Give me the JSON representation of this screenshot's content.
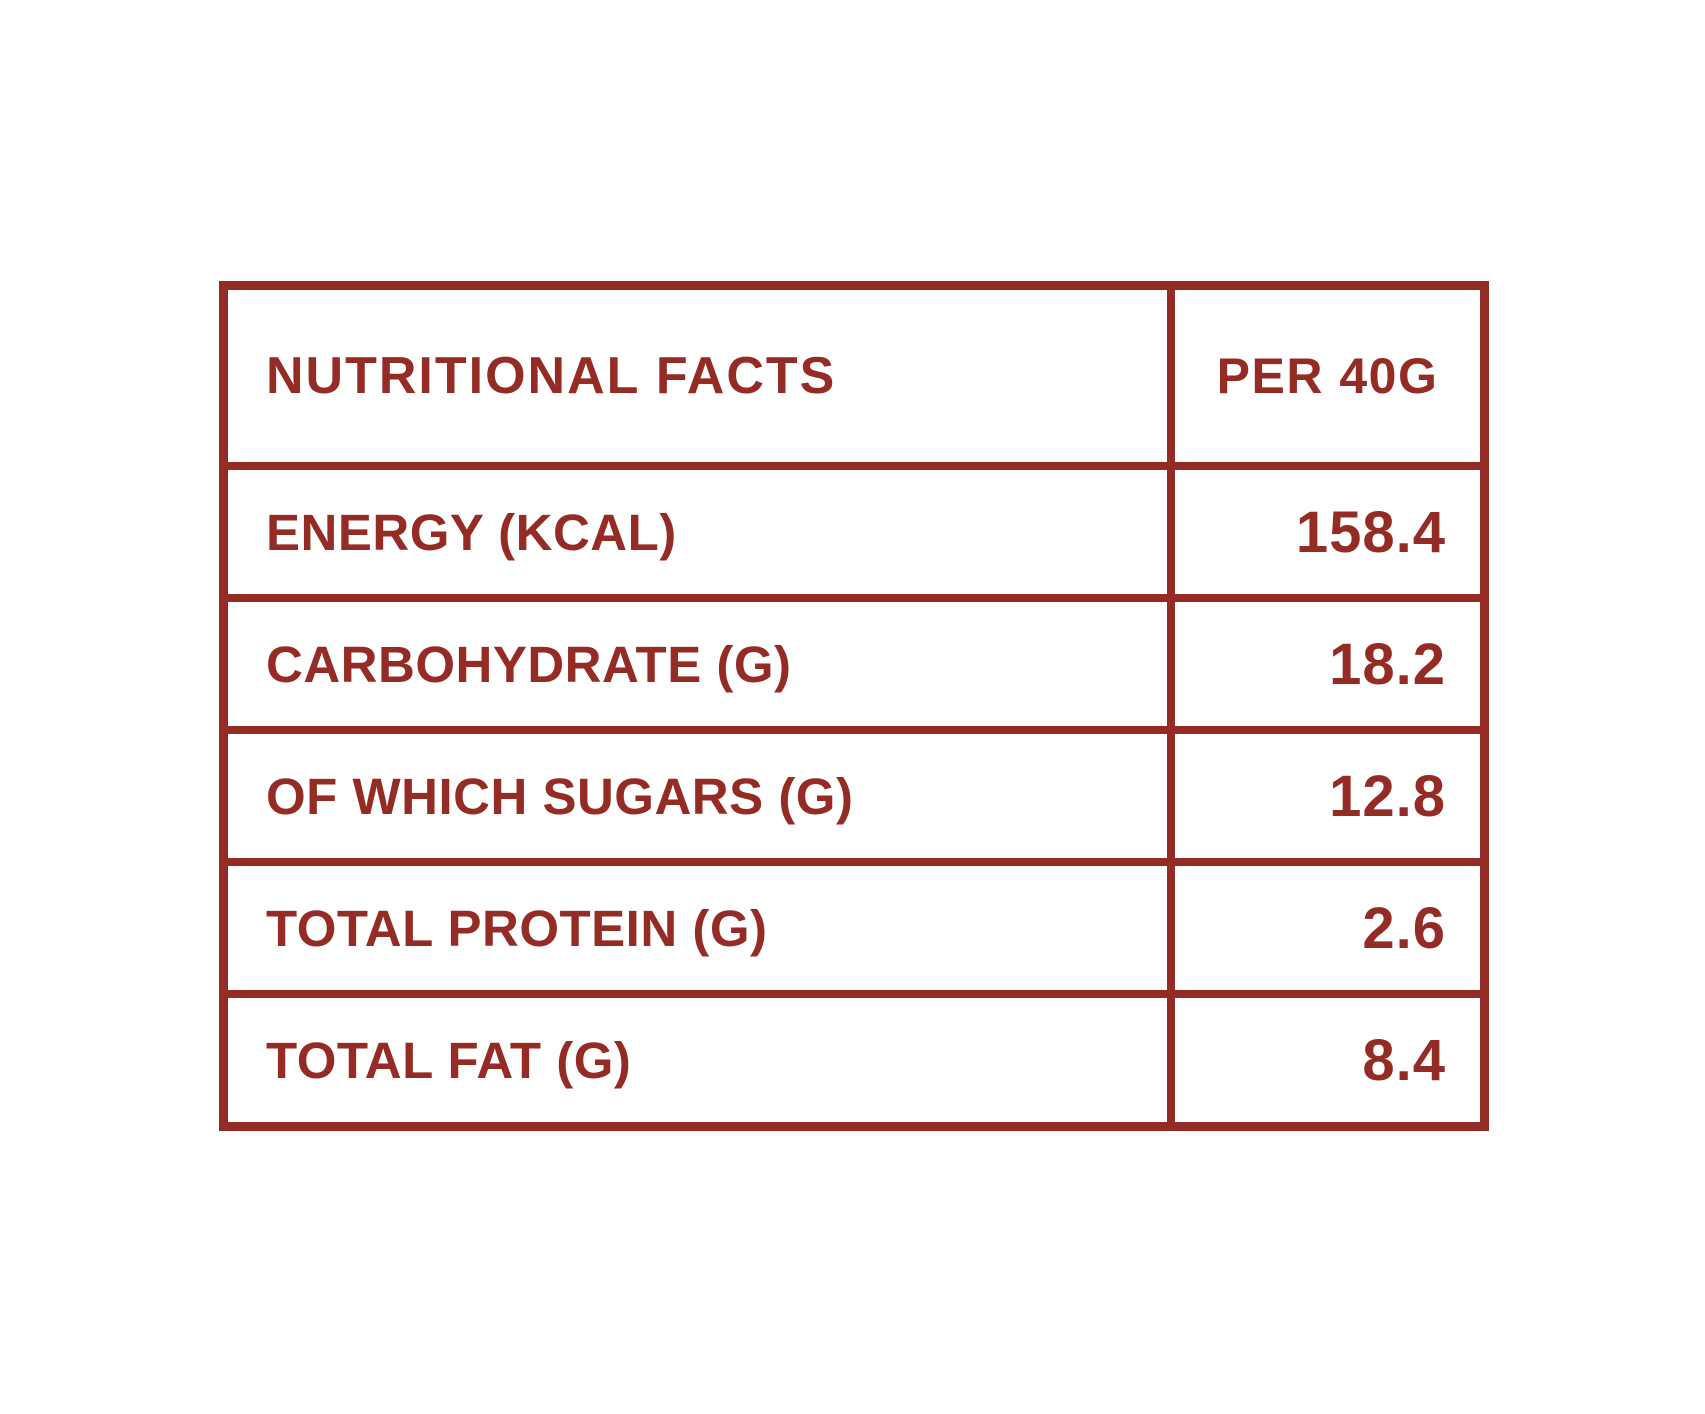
{
  "colors": {
    "brand_red": "#942B24",
    "background": "#FFFFFF"
  },
  "table": {
    "header": {
      "name_col": "NUTRITIONAL FACTS",
      "value_col": "PER 40G"
    },
    "rows": [
      {
        "label": "ENERGY (KCAL)",
        "value": "158.4"
      },
      {
        "label": "CARBOHYDRATE (G)",
        "value": "18.2"
      },
      {
        "label": "OF WHICH SUGARS (G)",
        "value": "12.8"
      },
      {
        "label": "TOTAL PROTEIN (G)",
        "value": "2.6"
      },
      {
        "label": "TOTAL FAT (G)",
        "value": "8.4"
      }
    ]
  }
}
